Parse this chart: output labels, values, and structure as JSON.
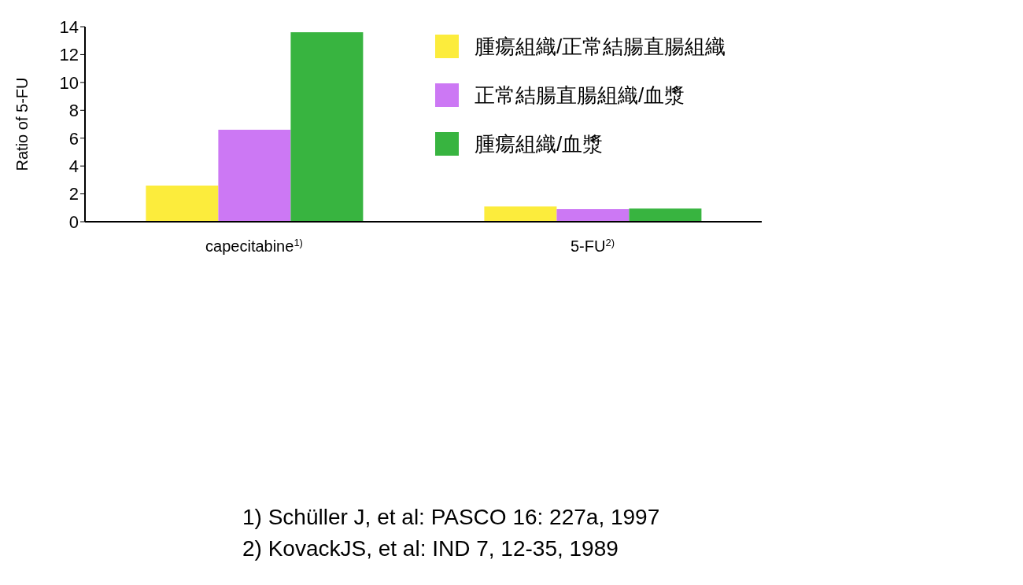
{
  "chart_data": {
    "type": "bar",
    "ylabel": "Ratio of 5-FU",
    "categories": [
      "capecitabine$^{1)}$",
      "5-FU$^{2)}$"
    ],
    "series": [
      {
        "name": "腫瘍組織/正常結腸直腸組織",
        "color": "#fcec3c",
        "values": [
          2.6,
          1.1
        ]
      },
      {
        "name": "正常結腸直腸組織/血漿",
        "color": "#cc78f4",
        "values": [
          6.6,
          0.9
        ]
      },
      {
        "name": "腫瘍組織/血漿",
        "color": "#38b440",
        "values": [
          13.6,
          0.95
        ]
      }
    ],
    "ylim": [
      0,
      14
    ],
    "yticks": [
      0,
      2,
      4,
      6,
      8,
      10,
      12,
      14
    ],
    "grid": false,
    "legend": "top right",
    "annotations": [
      "1) Schüller J, et al: PASCO 16: 227a, 1997",
      "2) KovackJS, et al: IND 7, 12-35, 1989"
    ]
  }
}
